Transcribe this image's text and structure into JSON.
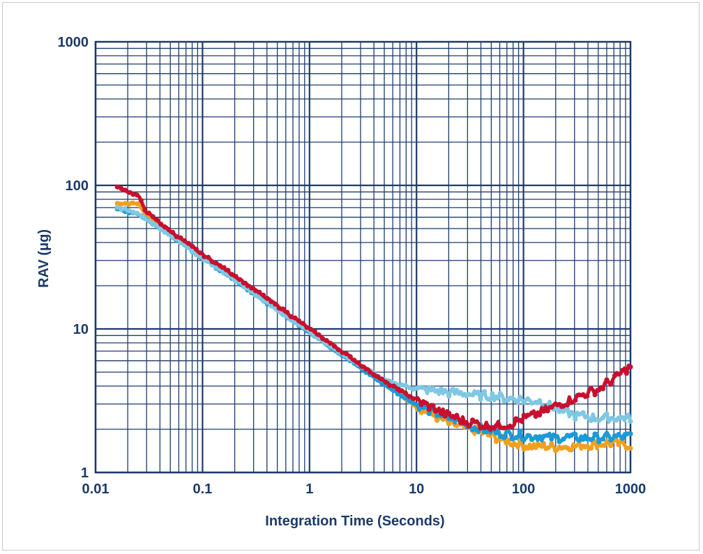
{
  "chart_data": {
    "type": "line",
    "xlabel": "Integration Time (Seconds)",
    "ylabel": "RAV (μg)",
    "x_scale": "log",
    "y_scale": "log",
    "xlim": [
      0.01,
      1000
    ],
    "ylim": [
      1,
      1000
    ],
    "grid": true,
    "x_ticks": [
      "0.01",
      "0.1",
      "1",
      "10",
      "100",
      "1000"
    ],
    "y_ticks": [
      "1",
      "10",
      "100",
      "1000"
    ],
    "colors": {
      "axis": "#1b3a6b",
      "grid": "#1b3a6b"
    },
    "series": [
      {
        "color": "#f0a020",
        "points": [
          [
            0.016,
            75
          ],
          [
            0.025,
            75
          ],
          [
            0.03,
            62
          ],
          [
            0.05,
            47
          ],
          [
            0.1,
            32
          ],
          [
            0.2,
            23
          ],
          [
            0.5,
            14
          ],
          [
            1,
            9.8
          ],
          [
            2,
            6.8
          ],
          [
            5,
            4.2
          ],
          [
            10,
            2.9
          ],
          [
            20,
            2.2
          ],
          [
            40,
            1.9
          ],
          [
            70,
            1.65
          ],
          [
            100,
            1.55
          ],
          [
            200,
            1.5
          ],
          [
            400,
            1.55
          ],
          [
            700,
            1.6
          ],
          [
            1000,
            1.55
          ]
        ]
      },
      {
        "color": "#1a9bd7",
        "points": [
          [
            0.016,
            68
          ],
          [
            0.025,
            63
          ],
          [
            0.05,
            45
          ],
          [
            0.1,
            31
          ],
          [
            0.2,
            22
          ],
          [
            0.5,
            13.5
          ],
          [
            1,
            9.5
          ],
          [
            2,
            6.6
          ],
          [
            5,
            4.1
          ],
          [
            10,
            2.95
          ],
          [
            20,
            2.4
          ],
          [
            40,
            2.0
          ],
          [
            70,
            1.85
          ],
          [
            100,
            1.8
          ],
          [
            200,
            1.75
          ],
          [
            400,
            1.75
          ],
          [
            700,
            1.75
          ],
          [
            1000,
            1.8
          ]
        ]
      },
      {
        "color": "#7ec8e3",
        "points": [
          [
            0.016,
            70
          ],
          [
            0.025,
            64
          ],
          [
            0.05,
            45
          ],
          [
            0.1,
            31
          ],
          [
            0.2,
            22
          ],
          [
            0.5,
            13.5
          ],
          [
            1,
            9.6
          ],
          [
            2,
            6.7
          ],
          [
            5,
            4.4
          ],
          [
            10,
            3.8
          ],
          [
            20,
            3.6
          ],
          [
            50,
            3.4
          ],
          [
            100,
            3.2
          ],
          [
            150,
            3.1
          ],
          [
            200,
            2.8
          ],
          [
            300,
            2.5
          ],
          [
            500,
            2.4
          ],
          [
            1000,
            2.4
          ]
        ]
      },
      {
        "color": "#c8102e",
        "points": [
          [
            0.016,
            97
          ],
          [
            0.025,
            85
          ],
          [
            0.03,
            65
          ],
          [
            0.05,
            48
          ],
          [
            0.1,
            33
          ],
          [
            0.2,
            23.5
          ],
          [
            0.5,
            14.5
          ],
          [
            1,
            10
          ],
          [
            2,
            7
          ],
          [
            5,
            4.3
          ],
          [
            10,
            3.2
          ],
          [
            20,
            2.5
          ],
          [
            30,
            2.25
          ],
          [
            50,
            2.1
          ],
          [
            70,
            2.15
          ],
          [
            100,
            2.35
          ],
          [
            200,
            2.9
          ],
          [
            300,
            3.3
          ],
          [
            500,
            3.8
          ],
          [
            700,
            4.5
          ],
          [
            1000,
            5.5
          ]
        ]
      }
    ]
  }
}
